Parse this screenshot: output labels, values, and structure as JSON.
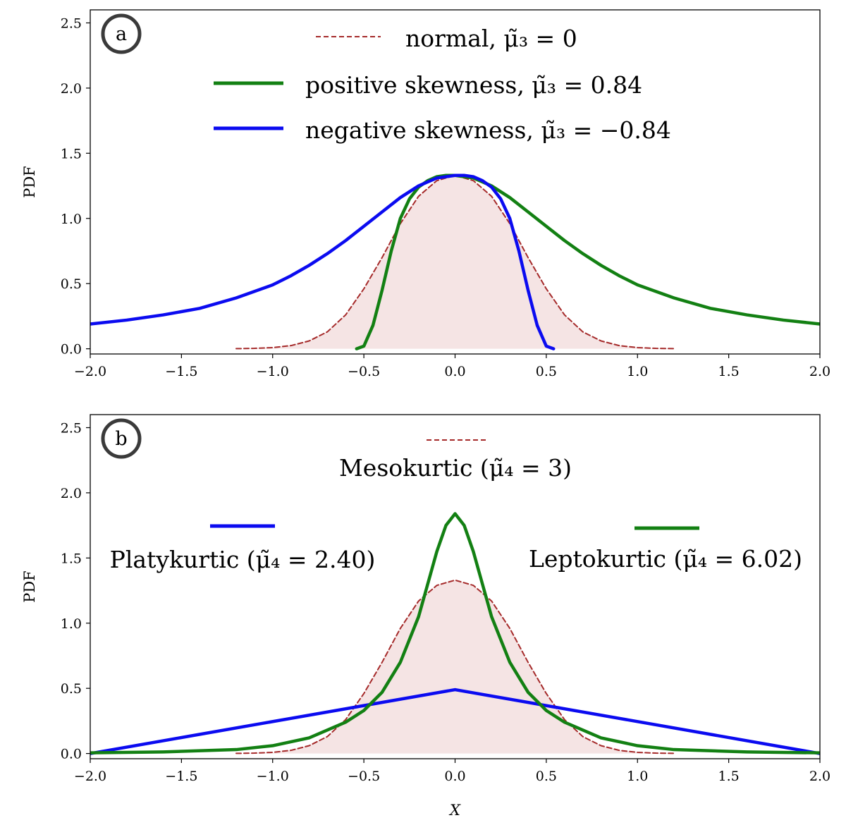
{
  "chart_data": [
    {
      "type": "line",
      "panel_label": "a",
      "xlabel": "",
      "ylabel": "PDF",
      "xlim": [
        -2.0,
        2.0
      ],
      "ylim": [
        -0.04,
        2.6
      ],
      "xticks": [
        "−2.0",
        "−1.5",
        "−1.0",
        "−0.5",
        "0.0",
        "0.5",
        "1.0",
        "1.5",
        "2.0"
      ],
      "yticks": [
        "0.0",
        "0.5",
        "1.0",
        "1.5",
        "2.0",
        "2.5"
      ],
      "grid": false,
      "legend_position": "top-center",
      "series": [
        {
          "name": "normal, μ̃₃ = 0",
          "style": "dashed",
          "color": "#a52a2a",
          "fill": "#f5e4e4",
          "x": [
            -1.2,
            -1.1,
            -1.0,
            -0.9,
            -0.8,
            -0.7,
            -0.6,
            -0.5,
            -0.4,
            -0.3,
            -0.2,
            -0.1,
            0.0,
            0.1,
            0.2,
            0.3,
            0.4,
            0.5,
            0.6,
            0.7,
            0.8,
            0.9,
            1.0,
            1.1,
            1.2
          ],
          "y": [
            0.001,
            0.003,
            0.009,
            0.024,
            0.06,
            0.13,
            0.26,
            0.46,
            0.7,
            0.96,
            1.17,
            1.29,
            1.33,
            1.29,
            1.17,
            0.96,
            0.7,
            0.46,
            0.26,
            0.13,
            0.06,
            0.024,
            0.009,
            0.003,
            0.001
          ]
        },
        {
          "name": "positive skewness, μ̃₃ = 0.84",
          "style": "solid",
          "color": "#138013",
          "x": [
            -0.54,
            -0.5,
            -0.45,
            -0.4,
            -0.35,
            -0.3,
            -0.25,
            -0.2,
            -0.15,
            -0.1,
            -0.05,
            0.0,
            0.1,
            0.2,
            0.3,
            0.4,
            0.5,
            0.6,
            0.7,
            0.8,
            0.9,
            1.0,
            1.2,
            1.4,
            1.6,
            1.8,
            2.0
          ],
          "y": [
            0.0,
            0.02,
            0.18,
            0.45,
            0.75,
            1.0,
            1.15,
            1.24,
            1.29,
            1.32,
            1.33,
            1.33,
            1.31,
            1.25,
            1.16,
            1.05,
            0.94,
            0.83,
            0.73,
            0.64,
            0.56,
            0.49,
            0.39,
            0.31,
            0.26,
            0.22,
            0.19
          ]
        },
        {
          "name": "negative skewness, μ̃₃ = −0.84",
          "style": "solid",
          "color": "#0b0bf0",
          "x": [
            -2.0,
            -1.8,
            -1.6,
            -1.4,
            -1.2,
            -1.0,
            -0.9,
            -0.8,
            -0.7,
            -0.6,
            -0.5,
            -0.4,
            -0.3,
            -0.2,
            -0.1,
            0.0,
            0.05,
            0.1,
            0.15,
            0.2,
            0.25,
            0.3,
            0.35,
            0.4,
            0.45,
            0.5,
            0.54
          ],
          "y": [
            0.19,
            0.22,
            0.26,
            0.31,
            0.39,
            0.49,
            0.56,
            0.64,
            0.73,
            0.83,
            0.94,
            1.05,
            1.16,
            1.25,
            1.31,
            1.33,
            1.33,
            1.32,
            1.29,
            1.24,
            1.15,
            1.0,
            0.75,
            0.45,
            0.18,
            0.02,
            0.0
          ]
        }
      ]
    },
    {
      "type": "line",
      "panel_label": "b",
      "xlabel": "X",
      "ylabel": "PDF",
      "xlim": [
        -2.0,
        2.0
      ],
      "ylim": [
        -0.04,
        2.6
      ],
      "xticks": [
        "−2.0",
        "−1.5",
        "−1.0",
        "−0.5",
        "0.0",
        "0.5",
        "1.0",
        "1.5",
        "2.0"
      ],
      "yticks": [
        "0.0",
        "0.5",
        "1.0",
        "1.5",
        "2.0",
        "2.5"
      ],
      "grid": false,
      "legend_position": "top",
      "series": [
        {
          "name": "Mesokurtic (μ̃₄ = 3)",
          "style": "dashed",
          "color": "#a52a2a",
          "fill": "#f5e4e4",
          "x": [
            -1.2,
            -1.1,
            -1.0,
            -0.9,
            -0.8,
            -0.7,
            -0.6,
            -0.5,
            -0.4,
            -0.3,
            -0.2,
            -0.1,
            0.0,
            0.1,
            0.2,
            0.3,
            0.4,
            0.5,
            0.6,
            0.7,
            0.8,
            0.9,
            1.0,
            1.1,
            1.2
          ],
          "y": [
            0.001,
            0.003,
            0.009,
            0.024,
            0.06,
            0.13,
            0.26,
            0.46,
            0.7,
            0.96,
            1.17,
            1.29,
            1.33,
            1.29,
            1.17,
            0.96,
            0.7,
            0.46,
            0.26,
            0.13,
            0.06,
            0.024,
            0.009,
            0.003,
            0.001
          ]
        },
        {
          "name": "Platykurtic (μ̃₄ = 2.40)",
          "style": "solid",
          "color": "#0b0bf0",
          "x": [
            -2.0,
            0.0,
            2.0
          ],
          "y": [
            0.0,
            0.49,
            0.0
          ]
        },
        {
          "name": "Leptokurtic (μ̃₄ = 6.02)",
          "style": "solid",
          "color": "#138013",
          "x": [
            -2.0,
            -1.6,
            -1.2,
            -1.0,
            -0.8,
            -0.6,
            -0.5,
            -0.4,
            -0.3,
            -0.2,
            -0.15,
            -0.1,
            -0.05,
            0.0,
            0.05,
            0.1,
            0.15,
            0.2,
            0.3,
            0.4,
            0.5,
            0.6,
            0.8,
            1.0,
            1.2,
            1.6,
            2.0
          ],
          "y": [
            0.005,
            0.012,
            0.03,
            0.06,
            0.12,
            0.24,
            0.33,
            0.47,
            0.7,
            1.05,
            1.3,
            1.55,
            1.75,
            1.84,
            1.75,
            1.55,
            1.3,
            1.05,
            0.7,
            0.47,
            0.33,
            0.24,
            0.12,
            0.06,
            0.03,
            0.012,
            0.005
          ]
        }
      ]
    }
  ]
}
